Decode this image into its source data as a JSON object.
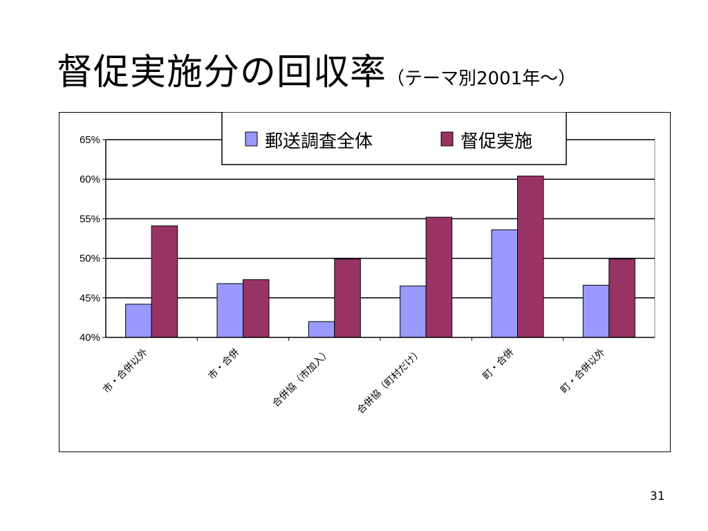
{
  "slide": {
    "title_main": "督促実施分の回収率",
    "title_sub": "（テーマ別2001年～）",
    "page_number": "31"
  },
  "chart_data": {
    "type": "bar",
    "categories": [
      "市・合併以外",
      "市・合併",
      "合併協（市加入）",
      "合併協（町村だけ）",
      "町・合併",
      "町・合併以外"
    ],
    "series": [
      {
        "name": "郵送調査全体",
        "color": "#9999ff",
        "values": [
          44.2,
          46.8,
          42.0,
          46.5,
          53.6,
          46.6
        ]
      },
      {
        "name": "督促実施",
        "color": "#993366",
        "values": [
          54.1,
          47.3,
          49.9,
          55.2,
          60.4,
          49.9
        ]
      }
    ],
    "ylim": [
      40,
      65
    ],
    "yticks": [
      40,
      45,
      50,
      55,
      60,
      65
    ],
    "ytick_labels": [
      "40%",
      "45%",
      "50%",
      "55%",
      "60%",
      "65%"
    ],
    "grid": true,
    "legend_position": "top"
  }
}
